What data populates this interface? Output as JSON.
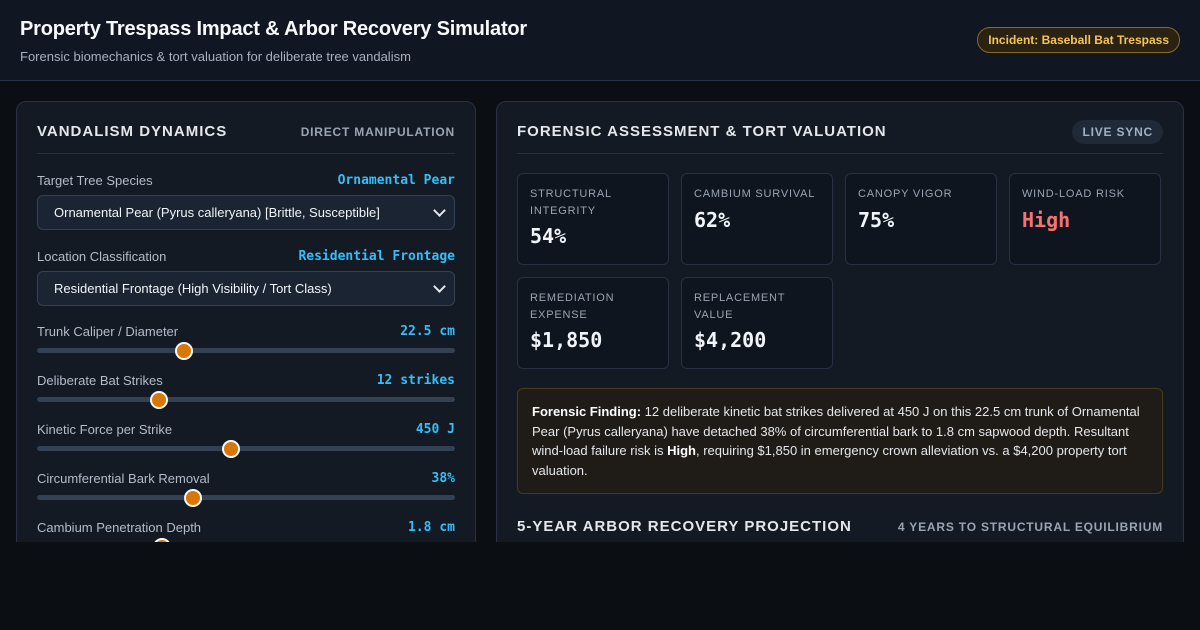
{
  "header": {
    "title": "Property Trespass Impact & Arbor Recovery Simulator",
    "subtitle": "Forensic biomechanics & tort valuation for deliberate tree vandalism",
    "incident_badge": "Incident: Baseball Bat Trespass"
  },
  "left_panel": {
    "title": "VANDALISM DYNAMICS",
    "tag": "DIRECT MANIPULATION",
    "species": {
      "label": "Target Tree Species",
      "value": "Ornamental Pear",
      "selected": "Ornamental Pear (Pyrus calleryana) [Brittle, Susceptible]"
    },
    "location": {
      "label": "Location Classification",
      "value": "Residential Frontage",
      "selected": "Residential Frontage (High Visibility / Tort Class)"
    },
    "sliders": [
      {
        "label": "Trunk Caliper / Diameter",
        "value": "22.5 cm",
        "fraction": 0.352
      },
      {
        "label": "Deliberate Bat Strikes",
        "value": "12 strikes",
        "fraction": 0.292
      },
      {
        "label": "Kinetic Force per Strike",
        "value": "450 J",
        "fraction": 0.464
      },
      {
        "label": "Circumferential Bark Removal",
        "value": "38%",
        "fraction": 0.374
      },
      {
        "label": "Cambium Penetration Depth",
        "value": "1.8 cm",
        "fraction": 0.3
      }
    ]
  },
  "right_panel": {
    "title": "FORENSIC ASSESSMENT & TORT VALUATION",
    "tag": "LIVE SYNC",
    "metrics": [
      {
        "label": "STRUCTURAL INTEGRITY",
        "value": "54%"
      },
      {
        "label": "CAMBIUM SURVIVAL",
        "value": "62%"
      },
      {
        "label": "CANOPY VIGOR",
        "value": "75%"
      },
      {
        "label": "WIND-LOAD RISK",
        "value": "High"
      },
      {
        "label": "REMEDIATION EXPENSE",
        "value": "$1,850"
      },
      {
        "label": "REPLACEMENT VALUE",
        "value": "$4,200"
      }
    ],
    "finding": {
      "heading": "Forensic Finding:",
      "text_1": " 12 deliberate kinetic bat strikes delivered at 450 J on this 22.5 cm trunk of Ornamental Pear (Pyrus calleryana) have detached 38% of circumferential bark to 1.8 cm sapwood depth. Resultant wind-load failure risk is ",
      "risk": "High",
      "text_2": ", requiring $1,850 in emergency crown alleviation vs. a $4,200 property tort valuation."
    },
    "projection": {
      "title": "5-YEAR ARBOR RECOVERY PROJECTION",
      "tag": "4 YEARS TO STRUCTURAL EQUILIBRIUM"
    }
  },
  "colors": {
    "accent": "#38bdf8",
    "thumb": "#d97706",
    "danger": "#f87171",
    "badge": "#f6c35a"
  }
}
